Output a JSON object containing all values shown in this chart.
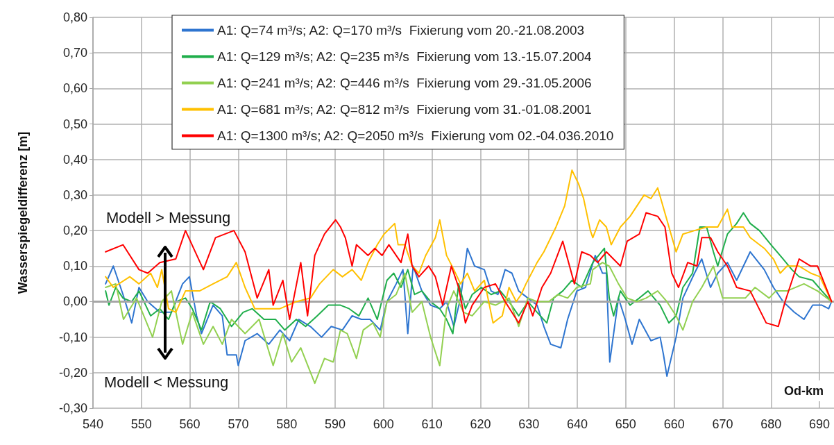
{
  "chart_data": {
    "type": "line",
    "xlabel": "Od-km",
    "ylabel": "Wasserspiegeldifferenz [m]",
    "annotations": [
      "Modell > Messung",
      "Modell < Messung"
    ],
    "xlim": [
      540,
      693
    ],
    "xticks": [
      540,
      550,
      560,
      570,
      580,
      590,
      600,
      610,
      620,
      630,
      640,
      650,
      660,
      670,
      680,
      690
    ],
    "ylim": [
      -0.3,
      0.8
    ],
    "yticks": [
      {
        "value": -0.3,
        "label": "-0,30"
      },
      {
        "value": -0.2,
        "label": "-0,20"
      },
      {
        "value": -0.1,
        "label": "-0,10"
      },
      {
        "value": 0,
        "label": "0,00"
      },
      {
        "value": 0.1,
        "label": "0,10"
      },
      {
        "value": 0.2,
        "label": "0,20"
      },
      {
        "value": 0.3,
        "label": "0,30"
      },
      {
        "value": 0.4,
        "label": "0,40"
      },
      {
        "value": 0.5,
        "label": "0,50"
      },
      {
        "value": 0.6,
        "label": "0,60"
      },
      {
        "value": 0.7,
        "label": "0,70"
      },
      {
        "value": 0.8,
        "label": "0,80"
      }
    ],
    "grid": true,
    "legend": "top",
    "marker": "none",
    "line_style": "solid",
    "ref_lines": [
      {
        "axis": "y",
        "value": 0,
        "color": "#a6a6a6"
      }
    ],
    "series": [
      {
        "name": "A1: Q=74 m³/s; A2: Q=170 m³/s  Fixierung vom 20.-21.08.2003",
        "color": "#2e75d0",
        "x": [
          542.6,
          544.2,
          546.2,
          548.0,
          549.5,
          551.3,
          553.8,
          556.2,
          558.5,
          559.9,
          561.4,
          562.4,
          564.8,
          566.7,
          567.7,
          569.6,
          570.0,
          571.4,
          573.9,
          576.3,
          578.6,
          580.6,
          582.5,
          584.9,
          587.2,
          589.2,
          591.5,
          593.5,
          595.4,
          597.2,
          599.3,
          600.7,
          602.6,
          604.0,
          605.0,
          606.1,
          607.9,
          609.7,
          611.6,
          613.0,
          614.5,
          615.9,
          617.3,
          618.8,
          620.8,
          622.2,
          623.6,
          625.1,
          626.5,
          627.9,
          629.8,
          631.7,
          633.1,
          634.5,
          636.6,
          638.0,
          639.9,
          641.7,
          643.7,
          645.2,
          646.0,
          646.7,
          648.5,
          649.9,
          651.3,
          652.8,
          655.2,
          657.1,
          657.8,
          658.5,
          660.4,
          661.8,
          664.2,
          665.7,
          667.5,
          669.0,
          671.0,
          672.9,
          675.7,
          678.6,
          680.5,
          682.5,
          684.8,
          686.8,
          688.6,
          690.5,
          691.9,
          692.5
        ],
        "values": [
          0.05,
          0.1,
          0.02,
          -0.06,
          0.04,
          0.0,
          -0.03,
          -0.03,
          0.05,
          0.07,
          -0.04,
          -0.09,
          -0.01,
          -0.04,
          -0.15,
          -0.15,
          -0.18,
          -0.11,
          -0.09,
          -0.12,
          -0.08,
          -0.11,
          -0.05,
          -0.07,
          -0.1,
          -0.07,
          -0.08,
          -0.04,
          -0.05,
          -0.05,
          -0.08,
          0.0,
          0.05,
          0.09,
          -0.09,
          0.1,
          0.03,
          -0.01,
          -0.02,
          0.0,
          -0.07,
          0.01,
          0.15,
          0.1,
          0.09,
          0.03,
          0.02,
          0.09,
          0.08,
          0.03,
          0.01,
          -0.01,
          -0.07,
          -0.12,
          -0.13,
          -0.05,
          0.03,
          0.04,
          0.13,
          0.08,
          0.08,
          -0.17,
          0.01,
          -0.05,
          -0.12,
          -0.05,
          -0.11,
          -0.1,
          -0.15,
          -0.21,
          -0.1,
          0.01,
          0.08,
          0.12,
          0.04,
          0.08,
          0.11,
          0.06,
          0.14,
          0.09,
          0.04,
          0.0,
          -0.03,
          -0.05,
          -0.01,
          -0.01,
          -0.02,
          0.0
        ]
      },
      {
        "name": "A1: Q=129 m³/s; A2: Q=235 m³/s  Fixierung vom 13.-15.07.2004",
        "color": "#1fae4b",
        "x": [
          542.6,
          543.3,
          544.7,
          546.2,
          548.0,
          549.5,
          551.9,
          553.8,
          555.6,
          557.1,
          559.1,
          560.5,
          562.4,
          564.2,
          566.3,
          568.6,
          571.0,
          572.9,
          575.3,
          577.7,
          579.6,
          582.0,
          583.9,
          586.3,
          588.6,
          591.1,
          592.9,
          594.9,
          596.8,
          598.7,
          600.7,
          602.1,
          603.6,
          605.0,
          606.4,
          607.9,
          609.7,
          611.6,
          613.0,
          614.3,
          615.5,
          616.9,
          618.3,
          620.2,
          622.2,
          624.1,
          625.9,
          627.9,
          629.8,
          631.7,
          633.7,
          635.1,
          637.0,
          638.9,
          640.9,
          643.2,
          645.6,
          646.6,
          647.5,
          648.9,
          650.9,
          652.8,
          654.6,
          657.1,
          658.9,
          660.4,
          661.8,
          663.8,
          665.3,
          666.7,
          668.1,
          669.0,
          671.0,
          672.9,
          674.3,
          675.7,
          677.6,
          680.0,
          682.5,
          684.3,
          685.8,
          688.6,
          690.5,
          692.5
        ],
        "values": [
          0.03,
          -0.01,
          0.04,
          0.01,
          0.0,
          0.03,
          -0.04,
          -0.02,
          -0.05,
          0.0,
          0.01,
          -0.02,
          -0.08,
          0.0,
          -0.02,
          -0.07,
          -0.03,
          -0.02,
          -0.05,
          -0.05,
          -0.08,
          -0.05,
          -0.07,
          -0.04,
          -0.01,
          -0.01,
          -0.02,
          -0.04,
          0.01,
          -0.05,
          0.06,
          0.08,
          0.04,
          0.09,
          0.02,
          0.03,
          0.0,
          -0.02,
          -0.05,
          -0.09,
          0.05,
          -0.02,
          0.02,
          0.04,
          0.02,
          0.03,
          0.0,
          -0.04,
          0.0,
          -0.03,
          -0.06,
          0.01,
          0.03,
          0.06,
          0.04,
          0.11,
          0.15,
          0.01,
          -0.04,
          0.03,
          -0.01,
          0.01,
          0.03,
          -0.01,
          -0.06,
          -0.04,
          0.04,
          0.08,
          0.21,
          0.21,
          0.14,
          0.1,
          0.19,
          0.22,
          0.25,
          0.22,
          0.2,
          0.16,
          0.12,
          0.09,
          0.07,
          0.06,
          0.03,
          0.0
        ]
      },
      {
        "name": "A1: Q=241 m³/s; A2: Q=446 m³/s  Fixierung vom 29.-31.05.2006",
        "color": "#92d050",
        "x": [
          542.6,
          544.7,
          546.3,
          549.0,
          552.3,
          554.2,
          556.2,
          558.5,
          560.5,
          562.8,
          564.8,
          566.7,
          568.6,
          571.4,
          574.3,
          577.2,
          579.2,
          581.0,
          582.9,
          585.8,
          587.8,
          589.6,
          591.1,
          592.5,
          594.4,
          595.8,
          597.8,
          599.3,
          600.7,
          602.6,
          604.4,
          605.9,
          607.9,
          609.7,
          611.6,
          613.0,
          614.5,
          616.5,
          618.3,
          620.8,
          623.1,
          625.9,
          627.9,
          629.8,
          631.7,
          634.1,
          636.0,
          638.0,
          639.9,
          642.7,
          643.2,
          645.2,
          646.6,
          648.5,
          650.3,
          652.3,
          654.2,
          656.6,
          658.5,
          660.4,
          661.8,
          663.8,
          665.7,
          668.1,
          670.0,
          672.4,
          674.7,
          676.7,
          679.6,
          681.0,
          683.3,
          686.8,
          689.6,
          692.5
        ],
        "values": [
          0.04,
          0.05,
          -0.05,
          0.01,
          -0.1,
          0.0,
          0.03,
          -0.12,
          -0.03,
          -0.12,
          -0.07,
          -0.12,
          -0.05,
          -0.09,
          -0.05,
          -0.18,
          -0.09,
          -0.17,
          -0.13,
          -0.23,
          -0.16,
          -0.17,
          -0.08,
          -0.09,
          -0.16,
          -0.08,
          -0.06,
          -0.1,
          0.0,
          0.02,
          0.08,
          -0.03,
          0.0,
          -0.1,
          -0.18,
          -0.02,
          0.03,
          -0.03,
          -0.04,
          0.0,
          -0.01,
          0.01,
          -0.07,
          0.01,
          0.0,
          0.0,
          0.02,
          0.01,
          0.04,
          0.05,
          0.09,
          0.11,
          0.1,
          0.05,
          0.01,
          0.0,
          0.01,
          0.03,
          0.0,
          -0.04,
          -0.08,
          0.0,
          0.04,
          0.1,
          0.01,
          0.01,
          0.01,
          0.04,
          0.01,
          0.03,
          0.03,
          0.05,
          0.03,
          0.0
        ]
      },
      {
        "name": "A1: Q=681 m³/s; A2: Q=812 m³/s  Fixierung vom 31.-01.08.2001",
        "color": "#ffc000",
        "x": [
          542.6,
          544.2,
          547.6,
          549.5,
          551.9,
          553.3,
          554.2,
          555.6,
          557.1,
          559.1,
          562.0,
          564.8,
          567.7,
          569.6,
          571.4,
          573.4,
          576.3,
          578.6,
          582.0,
          584.9,
          586.8,
          589.6,
          591.5,
          593.5,
          595.4,
          596.8,
          598.7,
          600.1,
          602.3,
          603.0,
          604.4,
          605.9,
          607.3,
          608.7,
          610.7,
          611.6,
          613.0,
          614.5,
          615.9,
          617.3,
          618.8,
          620.8,
          622.6,
          624.5,
          625.9,
          627.4,
          628.4,
          629.4,
          631.7,
          633.1,
          635.6,
          637.4,
          638.9,
          640.3,
          641.3,
          642.7,
          643.2,
          644.6,
          646.0,
          647.0,
          648.9,
          650.9,
          653.8,
          655.2,
          656.6,
          658.5,
          660.4,
          661.8,
          664.2,
          666.7,
          669.0,
          671.0,
          671.9,
          674.3,
          675.7,
          678.6,
          680.5,
          681.9,
          683.3,
          685.8,
          688.2,
          690.1,
          692.5
        ],
        "values": [
          0.07,
          0.04,
          0.07,
          0.05,
          0.08,
          0.04,
          0.09,
          -0.02,
          -0.03,
          0.03,
          0.03,
          0.05,
          0.07,
          0.11,
          0.04,
          -0.02,
          -0.02,
          -0.02,
          0.0,
          0.01,
          0.05,
          0.09,
          0.07,
          0.09,
          0.06,
          0.11,
          0.16,
          0.19,
          0.22,
          0.16,
          0.16,
          0.1,
          0.08,
          0.13,
          0.18,
          0.23,
          0.13,
          0.09,
          0.05,
          0.08,
          0.03,
          0.06,
          -0.06,
          -0.04,
          0.04,
          0.0,
          0.02,
          0.05,
          0.11,
          0.14,
          0.21,
          0.27,
          0.37,
          0.33,
          0.29,
          0.2,
          0.18,
          0.23,
          0.21,
          0.16,
          0.21,
          0.24,
          0.3,
          0.29,
          0.32,
          0.23,
          0.14,
          0.19,
          0.2,
          0.21,
          0.21,
          0.26,
          0.21,
          0.21,
          0.18,
          0.15,
          0.12,
          0.08,
          0.1,
          0.1,
          0.08,
          0.07,
          0.0
        ]
      },
      {
        "name": "A1: Q=1300 m³/s; A2: Q=2050 m³/s  Fixierung vom 02.-04.036.2010",
        "color": "#ff0000",
        "x": [
          542.6,
          546.2,
          549.5,
          551.3,
          553.8,
          557.1,
          559.1,
          562.8,
          565.3,
          569.1,
          571.4,
          573.9,
          576.3,
          577.2,
          579.2,
          580.6,
          582.9,
          584.3,
          585.8,
          587.8,
          590.1,
          591.1,
          592.1,
          593.5,
          594.4,
          596.8,
          598.2,
          599.7,
          601.1,
          603.6,
          605.0,
          605.9,
          607.3,
          609.3,
          610.7,
          612.2,
          614.0,
          615.5,
          616.9,
          618.3,
          620.8,
          623.1,
          625.1,
          627.9,
          629.8,
          630.8,
          632.7,
          634.5,
          637.0,
          639.4,
          640.9,
          642.7,
          644.2,
          646.0,
          648.9,
          650.3,
          652.8,
          654.2,
          656.6,
          658.1,
          659.5,
          660.9,
          662.8,
          664.7,
          665.7,
          667.5,
          669.0,
          671.0,
          672.9,
          675.7,
          679.0,
          681.5,
          682.9,
          685.8,
          688.2,
          689.6,
          692.5
        ],
        "values": [
          0.14,
          0.16,
          0.09,
          0.08,
          0.11,
          0.12,
          0.2,
          0.09,
          0.18,
          0.2,
          0.14,
          0.01,
          0.09,
          -0.01,
          0.06,
          -0.05,
          0.11,
          -0.04,
          0.13,
          0.19,
          0.23,
          0.21,
          0.18,
          0.1,
          0.16,
          0.13,
          0.15,
          0.13,
          0.16,
          0.11,
          0.19,
          0.1,
          0.07,
          0.1,
          0.07,
          -0.01,
          0.1,
          0.04,
          -0.06,
          -0.01,
          0.04,
          0.05,
          0.0,
          -0.06,
          0.0,
          -0.04,
          0.04,
          0.08,
          0.17,
          0.05,
          0.14,
          0.13,
          0.11,
          0.14,
          0.1,
          0.17,
          0.19,
          0.25,
          0.24,
          0.21,
          0.08,
          0.04,
          0.11,
          0.1,
          0.18,
          0.18,
          0.14,
          0.1,
          0.04,
          0.03,
          -0.06,
          -0.07,
          0.0,
          0.12,
          0.1,
          0.1,
          0.0
        ]
      }
    ]
  }
}
